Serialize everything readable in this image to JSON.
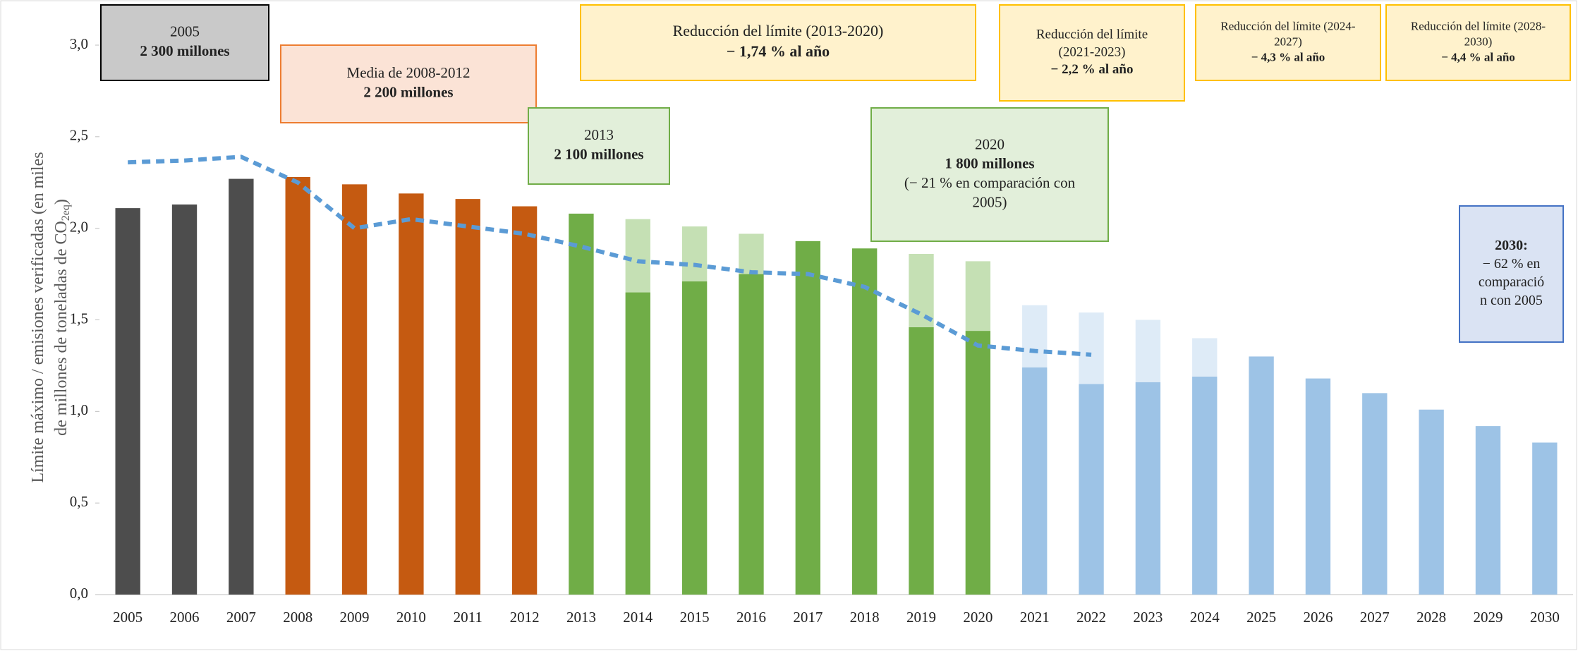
{
  "chart_data": {
    "type": "bar",
    "y_label": [
      "Límite máximo / emisiones verificadas (en miles",
      "de millones de toneladas de CO",
      "2eq",
      ")"
    ],
    "categories": [
      "2005",
      "2006",
      "2007",
      "2008",
      "2009",
      "2010",
      "2011",
      "2012",
      "2013",
      "2014",
      "2015",
      "2016",
      "2017",
      "2018",
      "2019",
      "2020",
      "2021",
      "2022",
      "2023",
      "2024",
      "2025",
      "2026",
      "2027",
      "2028",
      "2029",
      "2030"
    ],
    "series": [
      {
        "values": [
          2.11,
          2.13,
          2.27,
          2.28,
          2.24,
          2.19,
          2.16,
          2.12,
          2.08,
          1.65,
          1.71,
          1.75,
          1.93,
          1.89,
          1.46,
          1.44,
          1.24,
          1.15,
          1.16,
          1.19,
          1.3,
          1.18,
          1.1,
          1.01,
          0.92,
          0.83
        ],
        "colors": [
          "#4d4d4d",
          "#4d4d4d",
          "#4d4d4d",
          "#c55a11",
          "#c55a11",
          "#c55a11",
          "#c55a11",
          "#c55a11",
          "#70ad47",
          "#70ad47",
          "#70ad47",
          "#70ad47",
          "#70ad47",
          "#70ad47",
          "#70ad47",
          "#70ad47",
          "#9dc3e6",
          "#9dc3e6",
          "#9dc3e6",
          "#9dc3e6",
          "#9dc3e6",
          "#9dc3e6",
          "#9dc3e6",
          "#9dc3e6",
          "#9dc3e6",
          "#9dc3e6"
        ]
      },
      {
        "values": [
          null,
          null,
          null,
          null,
          null,
          null,
          null,
          null,
          null,
          0.4,
          0.3,
          0.22,
          null,
          null,
          0.4,
          0.38,
          0.34,
          0.39,
          0.34,
          0.21,
          null,
          null,
          null,
          null,
          null,
          null
        ],
        "colors": [
          null,
          null,
          null,
          null,
          null,
          null,
          null,
          null,
          null,
          "#c5e0b4",
          "#c5e0b4",
          "#c5e0b4",
          null,
          null,
          "#c5e0b4",
          "#c5e0b4",
          "#deebf7",
          "#deebf7",
          "#deebf7",
          "#deebf7",
          null,
          null,
          null,
          null,
          null,
          null
        ]
      }
    ],
    "line": {
      "type": "line",
      "color": "#5b9bd5",
      "dashed": true,
      "values": [
        2.36,
        2.37,
        2.39,
        2.25,
        2.0,
        2.05,
        2.01,
        1.97,
        1.9,
        1.82,
        1.8,
        1.76,
        1.75,
        1.68,
        1.53,
        1.36,
        1.33,
        1.31,
        null,
        null,
        null,
        null,
        null,
        null,
        null,
        null
      ]
    },
    "ylim": [
      0,
      3.0
    ],
    "yticks": [
      {
        "value": 0,
        "label": "0,0"
      },
      {
        "value": 0.5,
        "label": "0,5"
      },
      {
        "value": 1,
        "label": "1,0"
      },
      {
        "value": 1.5,
        "label": "1,5"
      },
      {
        "value": 2,
        "label": "2,0"
      },
      {
        "value": 2.5,
        "label": "2,5"
      },
      {
        "value": 3,
        "label": "3,0"
      }
    ],
    "annotations": [
      {
        "lines": [
          "2005",
          "2 300 millones"
        ],
        "fill": "#c9c9c9",
        "border": "#000000"
      },
      {
        "lines": [
          "Media de 2008-2012",
          "2 200 millones"
        ],
        "fill": "#fbe3d6",
        "border": "#ed7d31"
      },
      {
        "lines": [
          "2013",
          "2 100 millones"
        ],
        "fill": "#e2efda",
        "border": "#70ad47"
      },
      {
        "lines": [
          "Reducción del límite (2013-2020)",
          "− 1,74 % al año"
        ],
        "fill": "#fff2cc",
        "border": "#ffc000"
      },
      {
        "lines": [
          "2020",
          "1 800 millones",
          "(− 21 % en comparación con",
          "2005)"
        ],
        "fill": "#e2efda",
        "border": "#70ad47"
      },
      {
        "lines": [
          "Reducción del límite",
          "(2021-2023)",
          "− 2,2 % al año"
        ],
        "fill": "#fff2cc",
        "border": "#ffc000"
      },
      {
        "lines": [
          "Reducción del límite (2024-",
          "2027)",
          "− 4,3 % al año"
        ],
        "fill": "#fff2cc",
        "border": "#ffc000"
      },
      {
        "lines": [
          "Reducción del límite (2028-",
          "2030)",
          "− 4,4 % al año"
        ],
        "fill": "#fff2cc",
        "border": "#ffc000"
      },
      {
        "lines": [
          "2030:",
          "− 62 % en",
          "comparació",
          "n con 2005"
        ],
        "fill": "#dae3f3",
        "border": "#4472c4"
      }
    ]
  }
}
